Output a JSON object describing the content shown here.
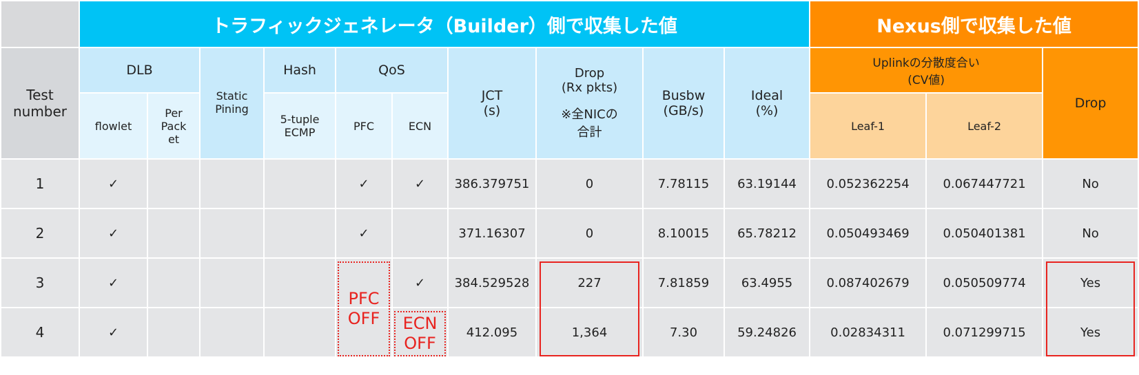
{
  "header": {
    "builder": "トラフィックジェネレータ（Builder）側で収集した値",
    "nexus": "Nexus側で収集した値"
  },
  "columns": {
    "test": "Test\nnumber",
    "dlb": "DLB",
    "flowlet": "flowlet",
    "per_packet": "Per\nPack\net",
    "static": "Static\nPining",
    "hash": "Hash",
    "ecmp": "5-tuple\nECMP",
    "qos": "QoS",
    "pfc": "PFC",
    "ecn": "ECN",
    "jct": "JCT\n(s)",
    "drop": "Drop\n(Rx pkts)",
    "drop_note": "※全NICの\n合計",
    "busbw": "Busbw\n(GB/s)",
    "ideal": "Ideal\n(%)",
    "uplink": "Uplinkの分散度合い\n(CV値)",
    "leaf1": "Leaf-1",
    "leaf2": "Leaf-2",
    "nexus_drop": "Drop"
  },
  "table": {
    "rows": [
      {
        "test": "1",
        "flowlet": "✓",
        "pfc": "✓",
        "ecn": "✓",
        "jct": "386.379751",
        "drop": "0",
        "busbw": "7.78115",
        "ideal": "63.19144",
        "leaf1": "0.052362254",
        "leaf2": "0.067447721",
        "nexus_drop": "No"
      },
      {
        "test": "2",
        "flowlet": "✓",
        "pfc": "✓",
        "jct": "371.16307",
        "drop": "0",
        "busbw": "8.10015",
        "ideal": "65.78212",
        "leaf1": "0.050493469",
        "leaf2": "0.050401381",
        "nexus_drop": "No"
      },
      {
        "test": "3",
        "flowlet": "✓",
        "ecn": "✓",
        "jct": "384.529528",
        "drop": "227",
        "busbw": "7.81859",
        "ideal": "63.4955",
        "leaf1": "0.087402679",
        "leaf2": "0.050509774",
        "nexus_drop": "Yes"
      },
      {
        "test": "4",
        "flowlet": "✓",
        "jct": "412.095",
        "drop": "1,364",
        "busbw": "7.30",
        "ideal": "59.24826",
        "leaf1": "0.02834311",
        "leaf2": "0.071299715",
        "nexus_drop": "Yes"
      }
    ]
  },
  "annotations": {
    "pfc_off": "PFC\nOFF",
    "ecn_off": "ECN\nOFF"
  }
}
